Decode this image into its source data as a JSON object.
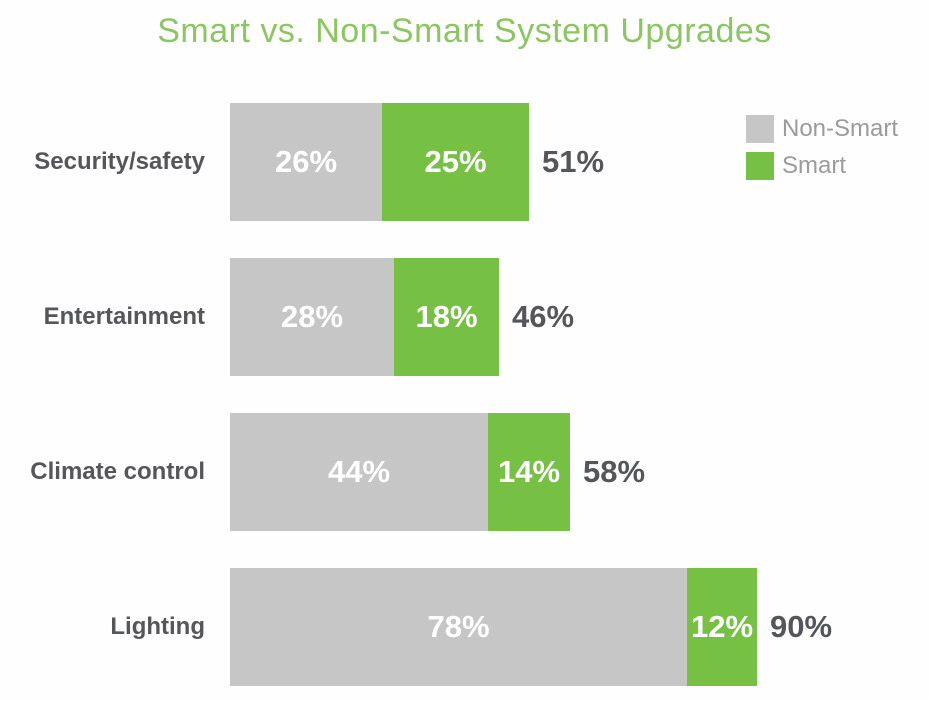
{
  "chart_data": {
    "type": "bar",
    "orientation": "horizontal",
    "stacked": true,
    "title": "Smart vs. Non-Smart System Upgrades",
    "categories": [
      "Security/safety",
      "Entertainment",
      "Climate control",
      "Lighting"
    ],
    "series": [
      {
        "name": "Non-Smart",
        "color": "#c6c6c6",
        "values": [
          26,
          28,
          44,
          78
        ]
      },
      {
        "name": "Smart",
        "color": "#76c143",
        "values": [
          25,
          18,
          14,
          12
        ]
      }
    ],
    "totals": [
      51,
      46,
      58,
      90
    ],
    "value_suffix": "%",
    "value_label_color": "#ffffff",
    "total_label_color": "#55565a",
    "category_label_color": "#55565a",
    "title_color": "#8cc662",
    "legend_position": "top-right",
    "legend_text_color": "#9b9b9b",
    "axis": "none",
    "grid": false
  }
}
